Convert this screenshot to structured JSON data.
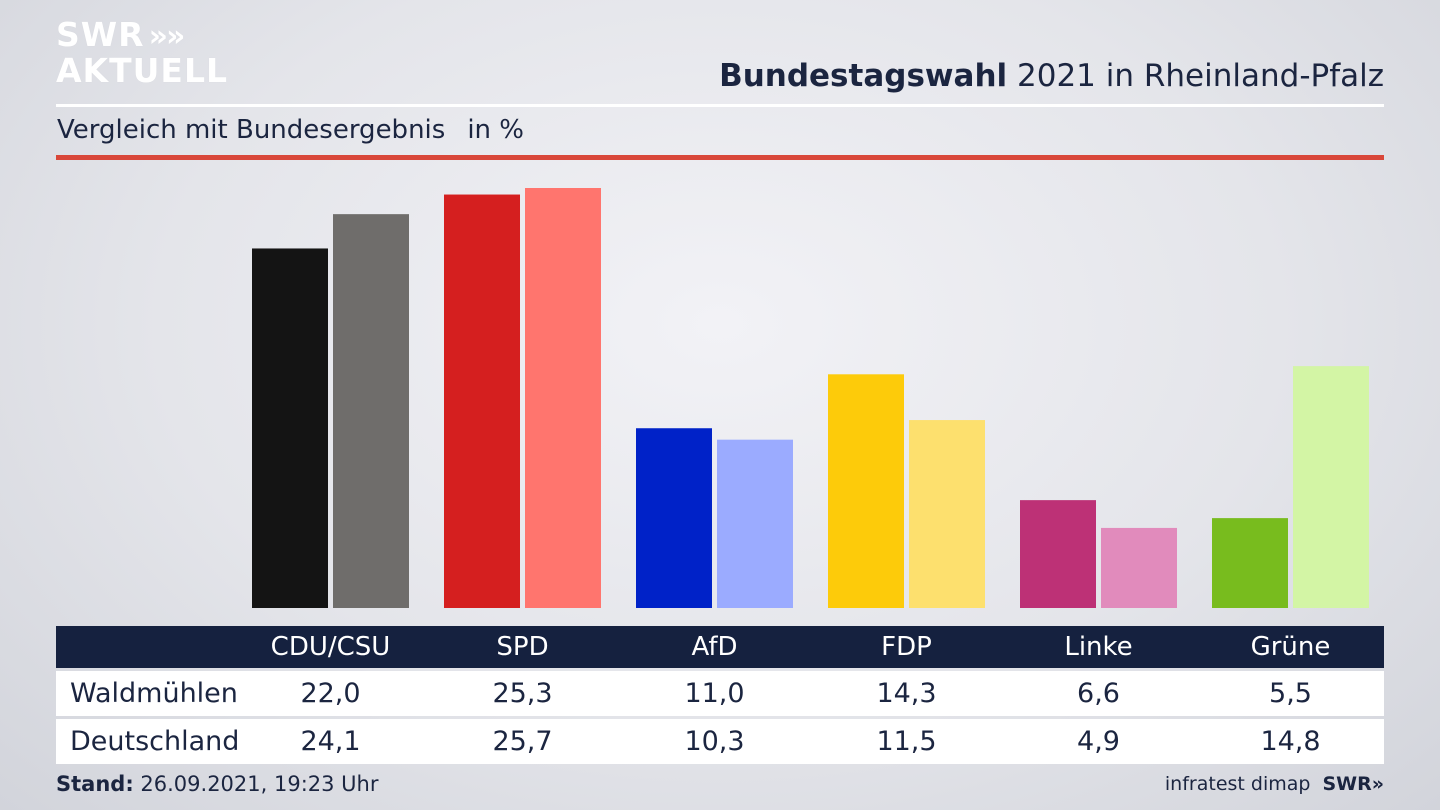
{
  "header": {
    "logo_line1": "SWR",
    "logo_chevrons": "»",
    "logo_line2": "AKTUELL",
    "title_bold": "Bundestagswahl",
    "title_rest": " 2021 in Rheinland-Pfalz",
    "subtitle": "Vergleich mit Bundesergebnis",
    "unit": "in %"
  },
  "colors": {
    "accent_rule": "#d9473a",
    "table_header_bg": "#15213f"
  },
  "chart_data": {
    "type": "bar",
    "categories": [
      "CDU/CSU",
      "SPD",
      "AfD",
      "FDP",
      "Linke",
      "Grüne"
    ],
    "series": [
      {
        "name": "Waldmühlen",
        "values": [
          22.0,
          25.3,
          11.0,
          14.3,
          6.6,
          5.5
        ],
        "colors": [
          "#141414",
          "#d51f1f",
          "#0022c8",
          "#fdcb0a",
          "#bd3176",
          "#78bc1e"
        ]
      },
      {
        "name": "Deutschland",
        "values": [
          24.1,
          25.7,
          10.3,
          11.5,
          4.9,
          14.8
        ],
        "colors": [
          "#6f6d6b",
          "#ff756e",
          "#9babff",
          "#fde06e",
          "#e18bbc",
          "#d3f5a5"
        ]
      }
    ],
    "ylim": [
      0,
      25.7
    ],
    "grid": false,
    "legend": "table-below"
  },
  "table": {
    "headers": [
      "CDU/CSU",
      "SPD",
      "AfD",
      "FDP",
      "Linke",
      "Grüne"
    ],
    "rows": [
      {
        "label": "Waldmühlen",
        "values": [
          "22,0",
          "25,3",
          "11,0",
          "14,3",
          "6,6",
          "5,5"
        ]
      },
      {
        "label": "Deutschland",
        "values": [
          "24,1",
          "25,7",
          "10,3",
          "11,5",
          "4,9",
          "14,8"
        ]
      }
    ]
  },
  "footer": {
    "stand_label": "Stand:",
    "stand_value": " 26.09.2021, 19:23 Uhr",
    "source": "infratest dimap",
    "brand": "SWR»"
  }
}
